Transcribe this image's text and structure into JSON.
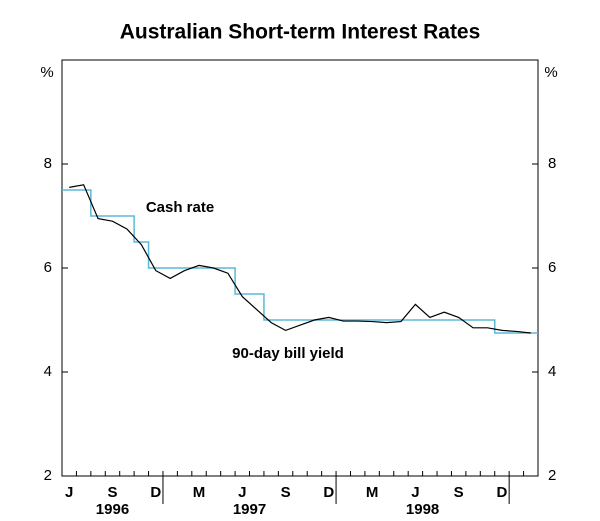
{
  "chart_data": {
    "type": "line",
    "title": "Australian Short-term Interest Rates",
    "y_unit": "%",
    "categories": [
      "J",
      null,
      null,
      "S",
      null,
      null,
      "D",
      null,
      null,
      "M",
      null,
      null,
      "J",
      null,
      null,
      "S",
      null,
      null,
      "D",
      null,
      null,
      "M",
      null,
      null,
      "J",
      null,
      null,
      "S",
      null,
      null,
      "D",
      null,
      null
    ],
    "year_labels": [
      "1996",
      "1997",
      "1998"
    ],
    "series": [
      {
        "name": "Cash rate",
        "color": "#5bb8d8",
        "step": true,
        "values": [
          7.5,
          7.5,
          7.0,
          7.0,
          7.0,
          6.5,
          6.0,
          6.0,
          6.0,
          6.0,
          6.0,
          6.0,
          5.5,
          5.5,
          5.0,
          5.0,
          5.0,
          5.0,
          5.0,
          5.0,
          5.0,
          5.0,
          5.0,
          5.0,
          5.0,
          5.0,
          5.0,
          5.0,
          5.0,
          5.0,
          4.75,
          4.75,
          4.75
        ]
      },
      {
        "name": "90-day bill yield",
        "color": "#000000",
        "step": false,
        "values": [
          7.55,
          7.6,
          6.95,
          6.9,
          6.75,
          6.45,
          5.95,
          5.8,
          5.95,
          6.05,
          6.0,
          5.9,
          5.45,
          5.2,
          4.95,
          4.8,
          4.9,
          5.0,
          5.05,
          4.98,
          4.98,
          4.97,
          4.95,
          4.97,
          5.3,
          5.05,
          5.15,
          5.05,
          4.85,
          4.85,
          4.8,
          4.78,
          4.75
        ]
      }
    ],
    "ylim": [
      2,
      10
    ],
    "yticks": [
      2,
      4,
      6,
      8
    ],
    "grid": false
  }
}
